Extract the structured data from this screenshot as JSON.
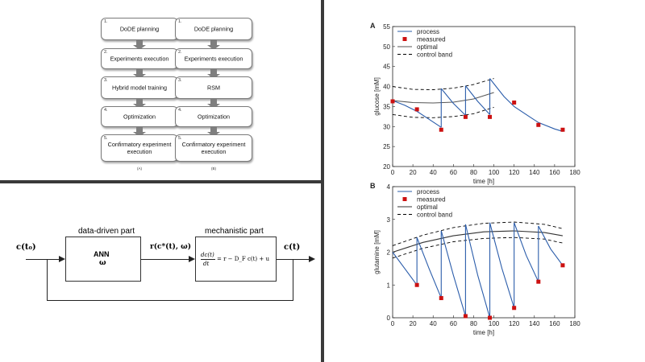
{
  "flowchart_a": {
    "steps": [
      {
        "num": "1.",
        "label": "DoDE planning"
      },
      {
        "num": "2.",
        "label": "Experiments execution"
      },
      {
        "num": "3.",
        "label": "Hybrid model training"
      },
      {
        "num": "4.",
        "label": "Optimization"
      },
      {
        "num": "5.",
        "label": "Confirmatory experiment execution"
      }
    ],
    "caption": "(A)"
  },
  "flowchart_b": {
    "steps": [
      {
        "num": "1.",
        "label": "DoDE planning"
      },
      {
        "num": "2.",
        "label": "Experiments execution"
      },
      {
        "num": "3.",
        "label": "RSM"
      },
      {
        "num": "4.",
        "label": "Optimization"
      },
      {
        "num": "5.",
        "label": "Confirmatory experiment execution"
      }
    ],
    "caption": "(B)"
  },
  "block_diagram": {
    "input_label": "c(t₀)",
    "data_driven_title": "data-driven part",
    "ann_label": "ANN",
    "omega_label": "ω",
    "rate_label": "r(c*(t), ω)",
    "mechanistic_title": "mechanistic part",
    "equation_lhs_top": "dc(t)",
    "equation_lhs_bottom": "dt",
    "equation_rhs": "= r − D_F c(t) + u",
    "output_label": "c(t)"
  },
  "chart_data": [
    {
      "panel_label": "A",
      "type": "line",
      "xlabel": "time [h]",
      "ylabel": "glucose [mM]",
      "xlim": [
        0,
        180
      ],
      "ylim": [
        20,
        55
      ],
      "xticks": [
        0,
        20,
        40,
        60,
        80,
        100,
        120,
        140,
        160,
        180
      ],
      "yticks": [
        20,
        25,
        30,
        35,
        40,
        45,
        50,
        55
      ],
      "legend": [
        "process",
        "measured",
        "optimal",
        "control band"
      ],
      "series": [
        {
          "name": "process",
          "color": "#2a5caa",
          "segments": [
            {
              "x": [
                0,
                12,
                24,
                36,
                48
              ],
              "y": [
                36.5,
                35.3,
                33.8,
                31.8,
                29.8
              ]
            },
            {
              "x": [
                48,
                60,
                72
              ],
              "y": [
                39.5,
                35.8,
                32.8
              ]
            },
            {
              "x": [
                72,
                84,
                96
              ],
              "y": [
                40.2,
                36.3,
                33.0
              ]
            },
            {
              "x": [
                96,
                110,
                120,
                135,
                144,
                160,
                168
              ],
              "y": [
                42.0,
                37.5,
                35.0,
                32.5,
                31.0,
                29.4,
                28.8
              ]
            }
          ],
          "jumps": [
            [
              48,
              29.8,
              39.5
            ],
            [
              72,
              32.8,
              40.2
            ],
            [
              96,
              33.0,
              42.0
            ]
          ]
        },
        {
          "name": "measured",
          "color": "#cc1111",
          "x": [
            0,
            24,
            48,
            72,
            96,
            120,
            144,
            168
          ],
          "y": [
            36.3,
            34.3,
            29.2,
            32.4,
            32.4,
            36.0,
            30.4,
            29.2
          ]
        },
        {
          "name": "optimal",
          "color": "#555555",
          "x": [
            0,
            20,
            40,
            60,
            80,
            100
          ],
          "y": [
            36.5,
            36.0,
            35.9,
            36.1,
            36.9,
            38.5
          ]
        },
        {
          "name": "control band upper",
          "color": "#000000",
          "x": [
            0,
            20,
            40,
            60,
            80,
            100
          ],
          "y": [
            40.0,
            39.3,
            39.2,
            39.6,
            40.5,
            42.0
          ]
        },
        {
          "name": "control band lower",
          "color": "#000000",
          "x": [
            0,
            20,
            40,
            60,
            80,
            100
          ],
          "y": [
            33.0,
            32.3,
            32.2,
            32.5,
            33.2,
            34.8
          ]
        }
      ]
    },
    {
      "panel_label": "B",
      "type": "line",
      "xlabel": "time [h]",
      "ylabel": "glutamine [mM]",
      "xlim": [
        0,
        180
      ],
      "ylim": [
        0,
        4
      ],
      "xticks": [
        0,
        20,
        40,
        60,
        80,
        100,
        120,
        140,
        160,
        180
      ],
      "yticks": [
        0,
        1,
        2,
        3,
        4
      ],
      "legend": [
        "process",
        "measured",
        "optimal",
        "control band"
      ],
      "series": [
        {
          "name": "process",
          "color": "#2a5caa",
          "segments": [
            {
              "x": [
                0,
                12,
                24
              ],
              "y": [
                2.0,
                1.5,
                1.0
              ]
            },
            {
              "x": [
                24,
                36,
                48
              ],
              "y": [
                2.45,
                1.5,
                0.6
              ]
            },
            {
              "x": [
                48,
                60,
                72
              ],
              "y": [
                2.65,
                1.3,
                0.05
              ]
            },
            {
              "x": [
                72,
                84,
                96
              ],
              "y": [
                2.85,
                1.3,
                0.0
              ]
            },
            {
              "x": [
                96,
                108,
                120
              ],
              "y": [
                2.9,
                1.5,
                0.3
              ]
            },
            {
              "x": [
                120,
                132,
                144
              ],
              "y": [
                2.9,
                1.9,
                1.1
              ]
            },
            {
              "x": [
                144,
                156,
                168
              ],
              "y": [
                2.8,
                2.1,
                1.6
              ]
            }
          ],
          "jumps": [
            [
              24,
              1.0,
              2.45
            ],
            [
              48,
              0.6,
              2.65
            ],
            [
              72,
              0.05,
              2.85
            ],
            [
              96,
              0.0,
              2.9
            ],
            [
              120,
              0.3,
              2.9
            ],
            [
              144,
              1.1,
              2.8
            ]
          ]
        },
        {
          "name": "measured",
          "color": "#cc1111",
          "x": [
            24,
            48,
            72,
            96,
            120,
            144,
            168
          ],
          "y": [
            1.0,
            0.6,
            0.05,
            0.0,
            0.3,
            1.1,
            1.6
          ]
        },
        {
          "name": "optimal",
          "color": "#333333",
          "x": [
            0,
            30,
            60,
            90,
            120,
            150,
            168
          ],
          "y": [
            2.0,
            2.3,
            2.5,
            2.62,
            2.65,
            2.6,
            2.5
          ]
        },
        {
          "name": "control band upper",
          "color": "#000000",
          "x": [
            0,
            30,
            60,
            90,
            120,
            150,
            168
          ],
          "y": [
            2.2,
            2.52,
            2.75,
            2.88,
            2.92,
            2.85,
            2.72
          ]
        },
        {
          "name": "control band lower",
          "color": "#000000",
          "x": [
            0,
            30,
            60,
            90,
            120,
            150,
            168
          ],
          "y": [
            1.82,
            2.12,
            2.32,
            2.42,
            2.45,
            2.4,
            2.28
          ]
        }
      ]
    }
  ]
}
